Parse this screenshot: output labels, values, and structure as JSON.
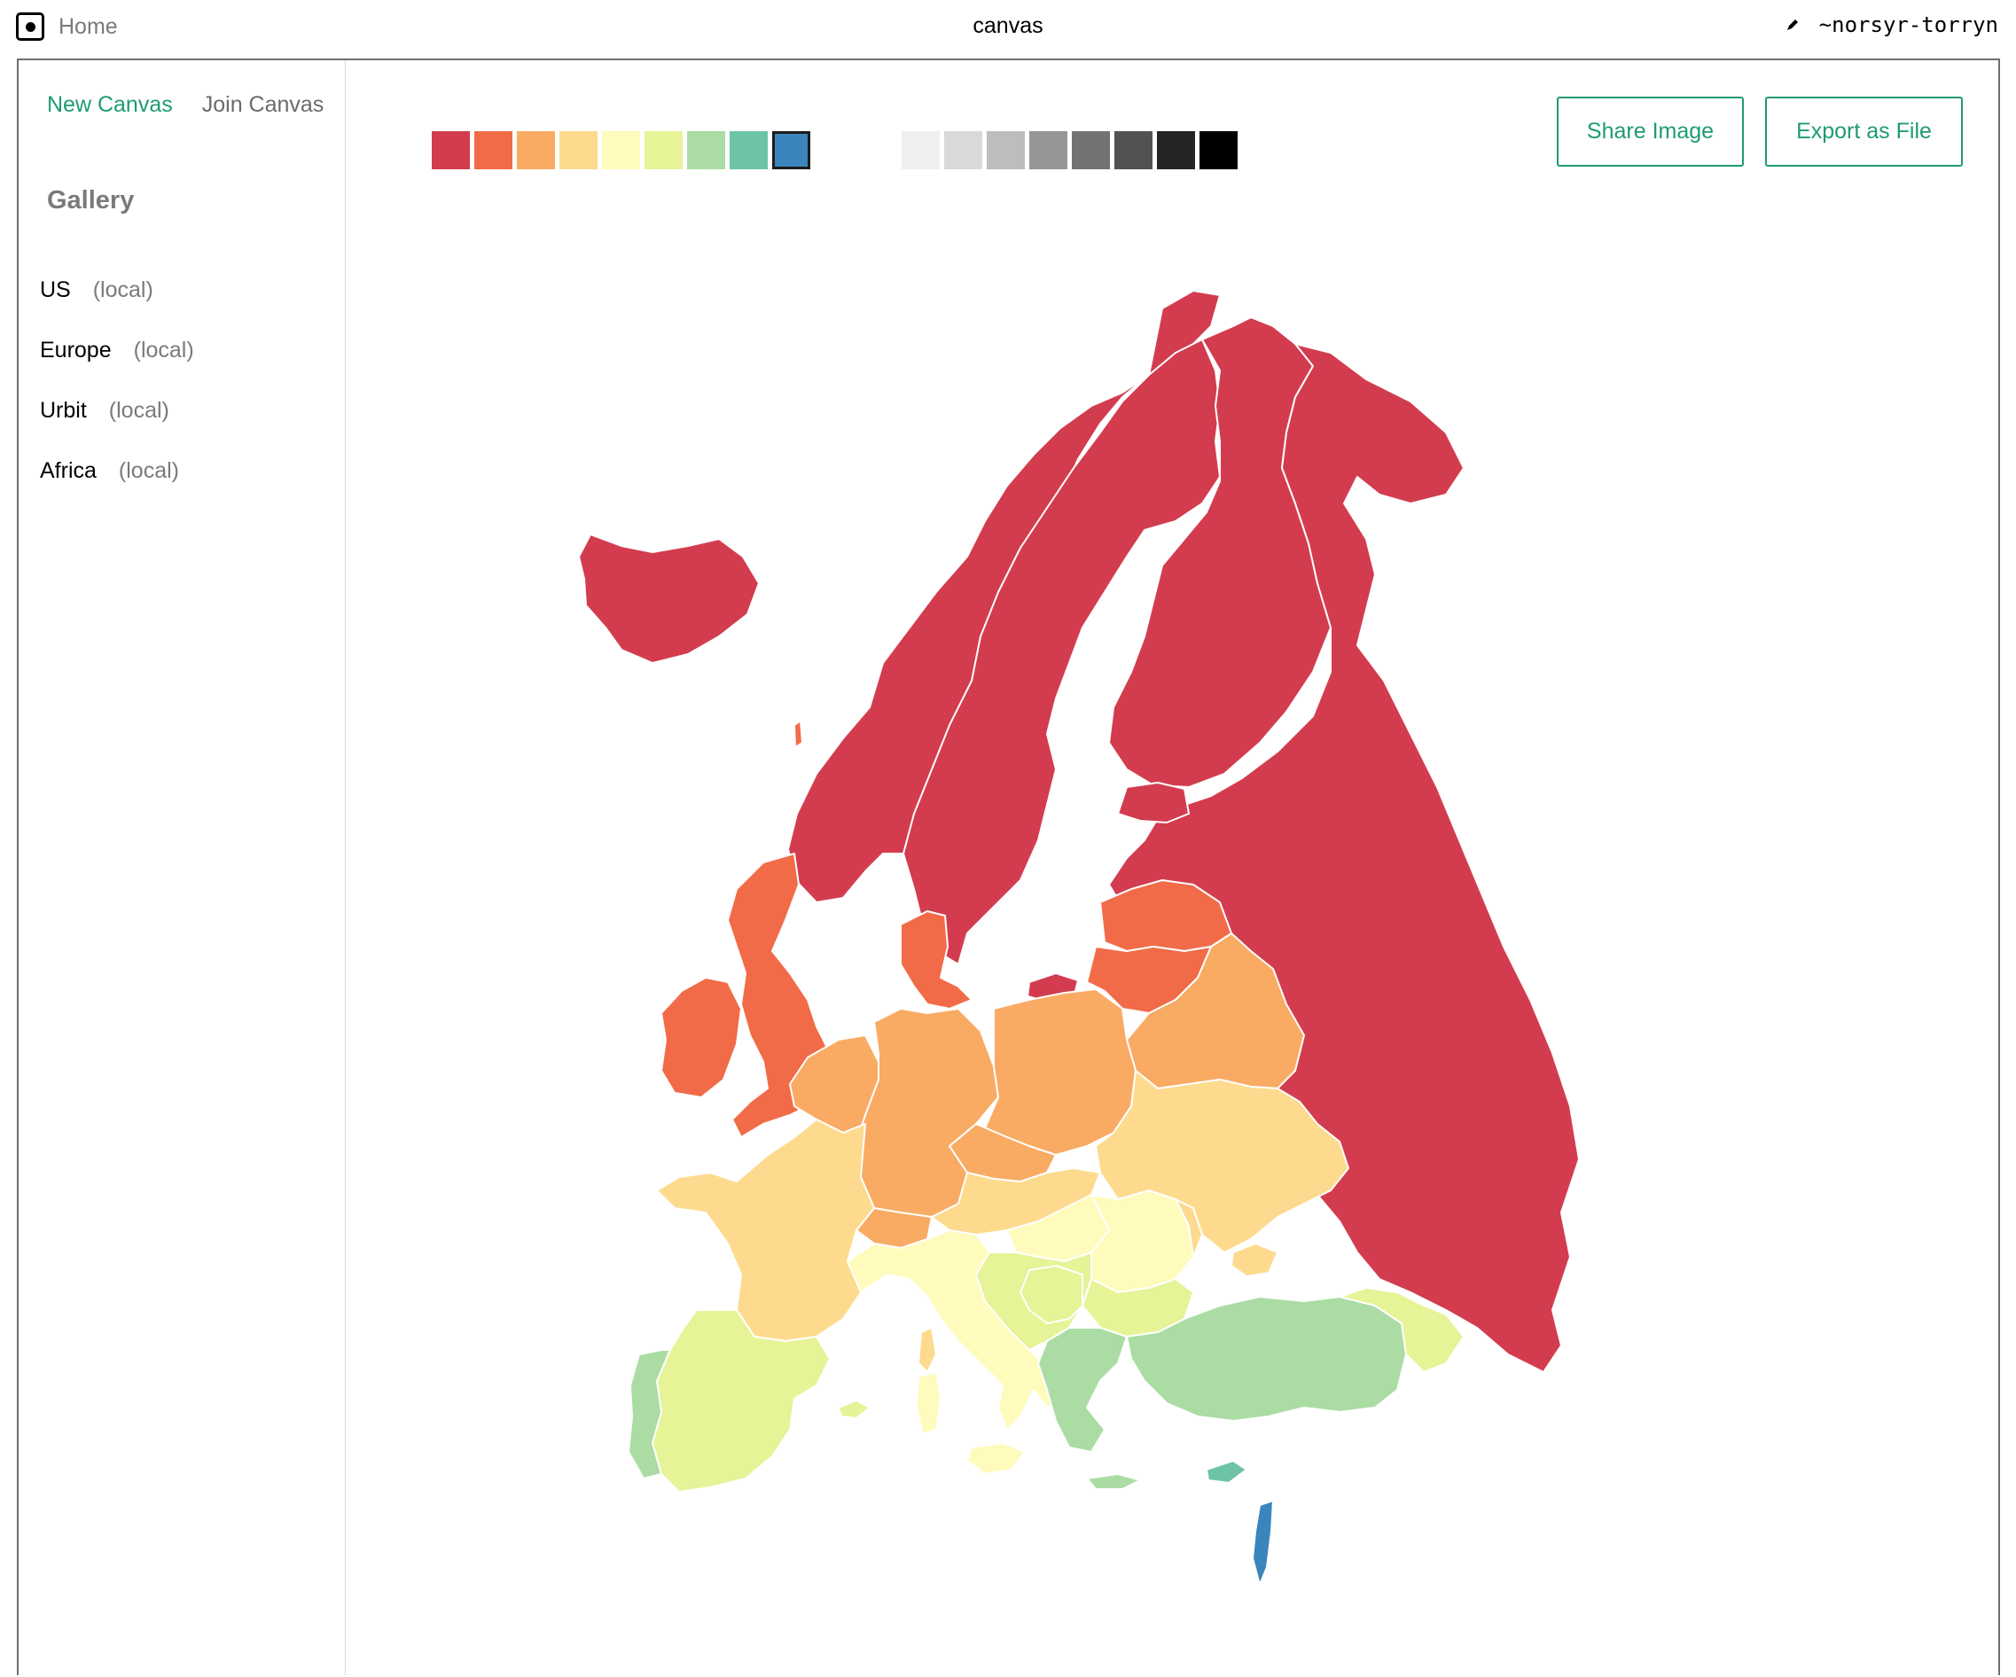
{
  "topbar": {
    "home_label": "Home",
    "app_title": "canvas",
    "user": "~norsyr-torryn",
    "icons": {
      "home": "home-icon",
      "edit": "pencil-icon"
    }
  },
  "sidebar": {
    "new_canvas": "New Canvas",
    "join_canvas": "Join Canvas",
    "gallery_title": "Gallery",
    "items": [
      {
        "name": "US",
        "tag": "(local)"
      },
      {
        "name": "Europe",
        "tag": "(local)"
      },
      {
        "name": "Urbit",
        "tag": "(local)"
      },
      {
        "name": "Africa",
        "tag": "(local)"
      }
    ]
  },
  "toolbar": {
    "share_label": "Share Image",
    "export_label": "Export as File",
    "color_palette": [
      "#d33c4f",
      "#f26b48",
      "#f9ab64",
      "#fdda8d",
      "#fefbbc",
      "#e6f397",
      "#abdca4",
      "#6dc4a5",
      "#3a86bc"
    ],
    "gray_palette": [
      "#efefef",
      "#d9d9d9",
      "#bdbdbd",
      "#969696",
      "#737373",
      "#525252",
      "#252525",
      "#000000"
    ],
    "selected_color": "#3a86bc"
  },
  "map": {
    "canvas_name": "Europe",
    "regions": [
      {
        "name": "iceland",
        "fill": "#d33c4f"
      },
      {
        "name": "norway",
        "fill": "#d33c4f"
      },
      {
        "name": "sweden",
        "fill": "#d33c4f"
      },
      {
        "name": "finland",
        "fill": "#d33c4f"
      },
      {
        "name": "russia",
        "fill": "#d33c4f"
      },
      {
        "name": "kaliningrad",
        "fill": "#d33c4f"
      },
      {
        "name": "ireland",
        "fill": "#f26b48"
      },
      {
        "name": "united-kingdom",
        "fill": "#f26b48"
      },
      {
        "name": "denmark",
        "fill": "#f26b48"
      },
      {
        "name": "latvia",
        "fill": "#f26b48"
      },
      {
        "name": "lithuania",
        "fill": "#f26b48"
      },
      {
        "name": "estonia",
        "fill": "#d33c4f"
      },
      {
        "name": "benelux",
        "fill": "#f9ab64"
      },
      {
        "name": "germany",
        "fill": "#f9ab64"
      },
      {
        "name": "poland",
        "fill": "#f9ab64"
      },
      {
        "name": "belarus",
        "fill": "#f9ab64"
      },
      {
        "name": "czechia",
        "fill": "#f9ab64"
      },
      {
        "name": "switzerland",
        "fill": "#f9ab64"
      },
      {
        "name": "france",
        "fill": "#fdda8d"
      },
      {
        "name": "ukraine",
        "fill": "#fdda8d"
      },
      {
        "name": "austria-slovakia",
        "fill": "#fdda8d"
      },
      {
        "name": "crimea",
        "fill": "#fdda8d"
      },
      {
        "name": "corsica",
        "fill": "#fdda8d"
      },
      {
        "name": "italy",
        "fill": "#fefbbc"
      },
      {
        "name": "sicily",
        "fill": "#fefbbc"
      },
      {
        "name": "sardinia",
        "fill": "#fefbbc"
      },
      {
        "name": "hungary",
        "fill": "#fefbbc"
      },
      {
        "name": "romania",
        "fill": "#fefbbc"
      },
      {
        "name": "moldova",
        "fill": "#fdda8d"
      },
      {
        "name": "spain",
        "fill": "#e6f397"
      },
      {
        "name": "balearics",
        "fill": "#e6f397"
      },
      {
        "name": "balkans",
        "fill": "#e6f397"
      },
      {
        "name": "bulgaria",
        "fill": "#e6f397"
      },
      {
        "name": "georgia-armenia",
        "fill": "#e6f397"
      },
      {
        "name": "portugal",
        "fill": "#abdca4"
      },
      {
        "name": "greece",
        "fill": "#abdca4"
      },
      {
        "name": "crete",
        "fill": "#abdca4"
      },
      {
        "name": "turkey",
        "fill": "#abdca4"
      },
      {
        "name": "serbia-bosnia",
        "fill": "#e6f397"
      },
      {
        "name": "cyprus",
        "fill": "#6dc4a5"
      },
      {
        "name": "israel",
        "fill": "#3a86bc"
      },
      {
        "name": "svalbard-dot",
        "fill": "#f26b48"
      }
    ]
  }
}
